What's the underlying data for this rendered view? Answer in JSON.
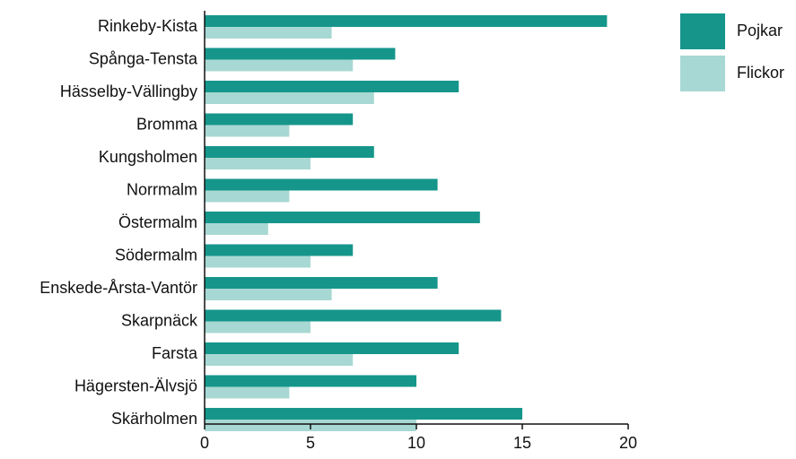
{
  "chart_data": {
    "type": "bar",
    "orientation": "horizontal",
    "categories": [
      "Rinkeby-Kista",
      "Spånga-Tensta",
      "Hässelby-Vällingby",
      "Bromma",
      "Kungsholmen",
      "Norrmalm",
      "Östermalm",
      "Södermalm",
      "Enskede-Årsta-Vantör",
      "Skarpnäck",
      "Farsta",
      "Hägersten-Älvsjö",
      "Skärholmen"
    ],
    "series": [
      {
        "name": "Pojkar",
        "color": "#16968b",
        "values": [
          19,
          9,
          12,
          7,
          8,
          11,
          13,
          7,
          11,
          14,
          12,
          10,
          15
        ]
      },
      {
        "name": "Flickor",
        "color": "#a8d8d3",
        "values": [
          6,
          7,
          8,
          4,
          5,
          4,
          3,
          5,
          6,
          5,
          7,
          4,
          10
        ]
      }
    ],
    "xlim": [
      0,
      20
    ],
    "xticks": [
      0,
      5,
      10,
      15,
      20
    ],
    "grid": false,
    "legend_position": "top-right"
  }
}
